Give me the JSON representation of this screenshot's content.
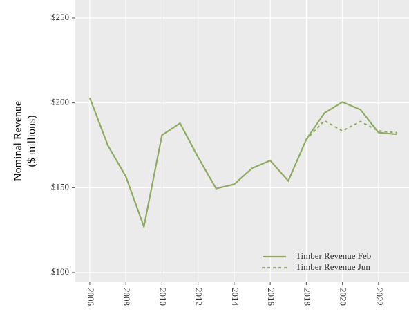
{
  "chart_data": {
    "type": "line",
    "y_label": [
      "Nominal Revenue",
      "($ millions)"
    ],
    "x": [
      2006,
      2007,
      2008,
      2009,
      2010,
      2011,
      2012,
      2013,
      2014,
      2015,
      2016,
      2017,
      2018,
      2019,
      2020,
      2021,
      2022,
      2023
    ],
    "series": [
      {
        "name": "Timber Revenue Feb",
        "color": "#8fab63",
        "style": "solid",
        "values": [
          203,
          175,
          156.5,
          127,
          181,
          188,
          168,
          149.5,
          152,
          161.5,
          166,
          154,
          178.5,
          194,
          200.5,
          196,
          182.5,
          181.5
        ]
      },
      {
        "name": "Timber Revenue Jun",
        "color": "#8fab63",
        "style": "dotted",
        "values": [
          null,
          null,
          null,
          null,
          null,
          null,
          null,
          null,
          null,
          null,
          null,
          null,
          178.5,
          189.5,
          183.5,
          189,
          183.5,
          182.5
        ]
      }
    ],
    "xlim": [
      2005.16,
      2023.69
    ],
    "ylim": [
      94.3,
      260.6
    ],
    "xticks": [
      2006,
      2008,
      2010,
      2012,
      2014,
      2016,
      2018,
      2020,
      2022
    ],
    "yticks": [
      {
        "value": 100,
        "label": "$100"
      },
      {
        "value": 150,
        "label": "$150"
      },
      {
        "value": 200,
        "label": "$200"
      },
      {
        "value": 250,
        "label": "$250"
      }
    ],
    "grid": true,
    "legend": "bottom-right"
  }
}
